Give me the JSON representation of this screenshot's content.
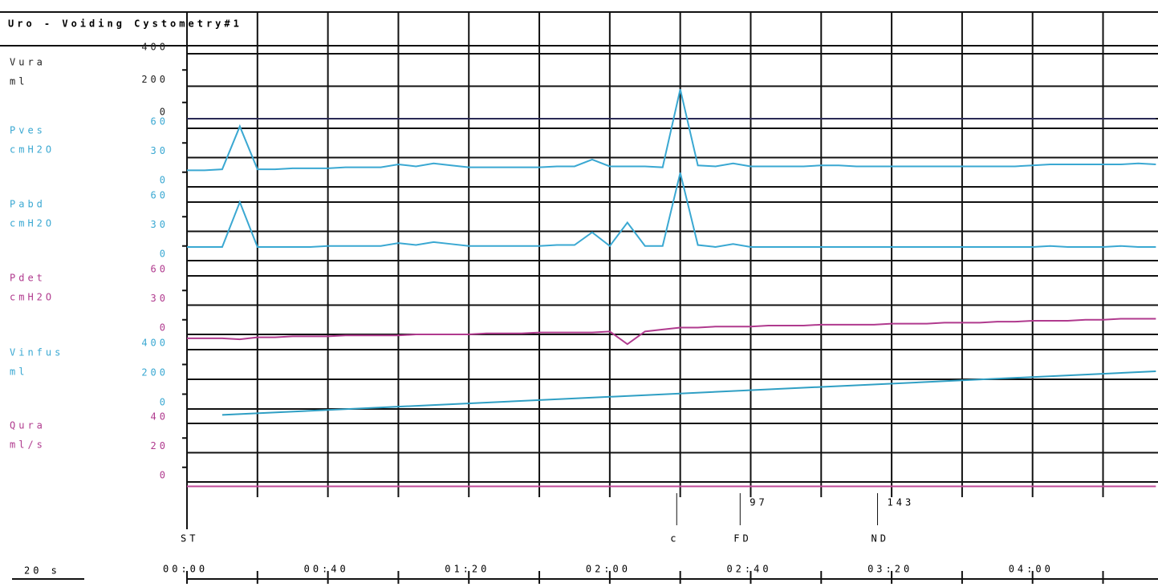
{
  "title": "Uro - Voiding Cystometry#1",
  "scale_label": "20 s",
  "time_axis": {
    "xlim": [
      0,
      275.6
    ],
    "xticks": [
      {
        "value": 0,
        "label": "00:00"
      },
      {
        "value": 40,
        "label": "00:40"
      },
      {
        "value": 80,
        "label": "01:20"
      },
      {
        "value": 120,
        "label": "02:00"
      },
      {
        "value": 160,
        "label": "02:40"
      },
      {
        "value": 200,
        "label": "03:20"
      },
      {
        "value": 240,
        "label": "04:00"
      }
    ]
  },
  "events": [
    {
      "label": "ST",
      "t": 0
    },
    {
      "label": "c",
      "t": 139
    },
    {
      "label": "FD",
      "t": 157,
      "value": 97
    },
    {
      "label": "ND",
      "t": 196,
      "value": 143
    }
  ],
  "chart_data": [
    {
      "type": "line",
      "name": "Vura",
      "unit": "ml",
      "color": "#2a2a55",
      "ylim": [
        0,
        400
      ],
      "yticks": [
        0,
        200,
        400
      ],
      "x": [
        0,
        275
      ],
      "values": [
        0,
        0
      ]
    },
    {
      "type": "line",
      "name": "Pves",
      "unit": "cmH2O",
      "color": "#3aa8d2",
      "ylim": [
        0,
        60
      ],
      "yticks": [
        0,
        30,
        60
      ],
      "x": [
        0,
        5,
        10,
        15,
        20,
        25,
        30,
        35,
        40,
        45,
        50,
        55,
        60,
        65,
        70,
        75,
        80,
        85,
        90,
        95,
        100,
        105,
        110,
        115,
        120,
        125,
        130,
        135,
        140,
        145,
        150,
        155,
        160,
        165,
        170,
        175,
        180,
        185,
        190,
        195,
        200,
        205,
        210,
        215,
        220,
        225,
        230,
        235,
        240,
        245,
        250,
        255,
        260,
        265,
        270,
        275
      ],
      "values": [
        17,
        17,
        18,
        62,
        18,
        18,
        19,
        19,
        19,
        20,
        20,
        20,
        23,
        21,
        24,
        22,
        20,
        20,
        20,
        20,
        20,
        21,
        21,
        28,
        21,
        21,
        21,
        20,
        100,
        22,
        21,
        24,
        21,
        21,
        21,
        21,
        22,
        22,
        21,
        21,
        21,
        21,
        21,
        21,
        21,
        21,
        21,
        21,
        22,
        23,
        23,
        23,
        23,
        23,
        24,
        23
      ]
    },
    {
      "type": "line",
      "name": "Pabd",
      "unit": "cmH2O",
      "color": "#3aa8d2",
      "ylim": [
        0,
        60
      ],
      "yticks": [
        0,
        30,
        60
      ],
      "x": [
        0,
        5,
        10,
        15,
        20,
        25,
        30,
        35,
        40,
        45,
        50,
        55,
        60,
        65,
        70,
        75,
        80,
        85,
        90,
        95,
        100,
        105,
        110,
        115,
        120,
        125,
        130,
        135,
        140,
        145,
        150,
        155,
        160,
        165,
        170,
        175,
        180,
        185,
        190,
        195,
        200,
        205,
        210,
        215,
        220,
        225,
        230,
        235,
        240,
        245,
        250,
        255,
        260,
        265,
        270,
        275
      ],
      "values": [
        14,
        14,
        14,
        60,
        14,
        14,
        14,
        14,
        15,
        15,
        15,
        15,
        18,
        16,
        19,
        17,
        15,
        15,
        15,
        15,
        15,
        16,
        16,
        29,
        15,
        39,
        15,
        15,
        90,
        16,
        14,
        17,
        14,
        14,
        14,
        14,
        14,
        14,
        14,
        14,
        14,
        14,
        14,
        14,
        14,
        14,
        14,
        14,
        14,
        15,
        14,
        14,
        14,
        15,
        14,
        14
      ]
    },
    {
      "type": "line",
      "name": "Pdet",
      "unit": "cmH2O",
      "color": "#b03a8e",
      "ylim": [
        0,
        60
      ],
      "yticks": [
        0,
        30,
        60
      ],
      "x": [
        0,
        5,
        10,
        15,
        20,
        25,
        30,
        35,
        40,
        45,
        50,
        55,
        60,
        65,
        70,
        75,
        80,
        85,
        90,
        95,
        100,
        105,
        110,
        115,
        120,
        125,
        130,
        135,
        140,
        145,
        150,
        155,
        160,
        165,
        170,
        175,
        180,
        185,
        190,
        195,
        200,
        205,
        210,
        215,
        220,
        225,
        230,
        235,
        240,
        245,
        250,
        255,
        260,
        265,
        270,
        275
      ],
      "values": [
        -4,
        -4,
        -4,
        -5,
        -3,
        -3,
        -2,
        -2,
        -2,
        -1,
        -1,
        -1,
        -1,
        0,
        0,
        0,
        0,
        1,
        1,
        1,
        2,
        2,
        2,
        2,
        3,
        -10,
        3,
        5,
        7,
        7,
        8,
        8,
        8,
        9,
        9,
        9,
        10,
        10,
        10,
        10,
        11,
        11,
        11,
        12,
        12,
        12,
        13,
        13,
        14,
        14,
        14,
        15,
        15,
        16,
        16,
        16
      ]
    },
    {
      "type": "line",
      "name": "Vinfus",
      "unit": "ml",
      "color": "#2f9fc4",
      "ylim": [
        0,
        400
      ],
      "yticks": [
        0,
        200,
        400
      ],
      "x": [
        10,
        275
      ],
      "values": [
        -40,
        254
      ]
    },
    {
      "type": "line",
      "name": "Qura",
      "unit": "ml/s",
      "color": "#c04a98",
      "ylim": [
        0,
        40
      ],
      "yticks": [
        0,
        20,
        40
      ],
      "x": [
        0,
        275
      ],
      "values": [
        -3,
        -3
      ]
    }
  ]
}
